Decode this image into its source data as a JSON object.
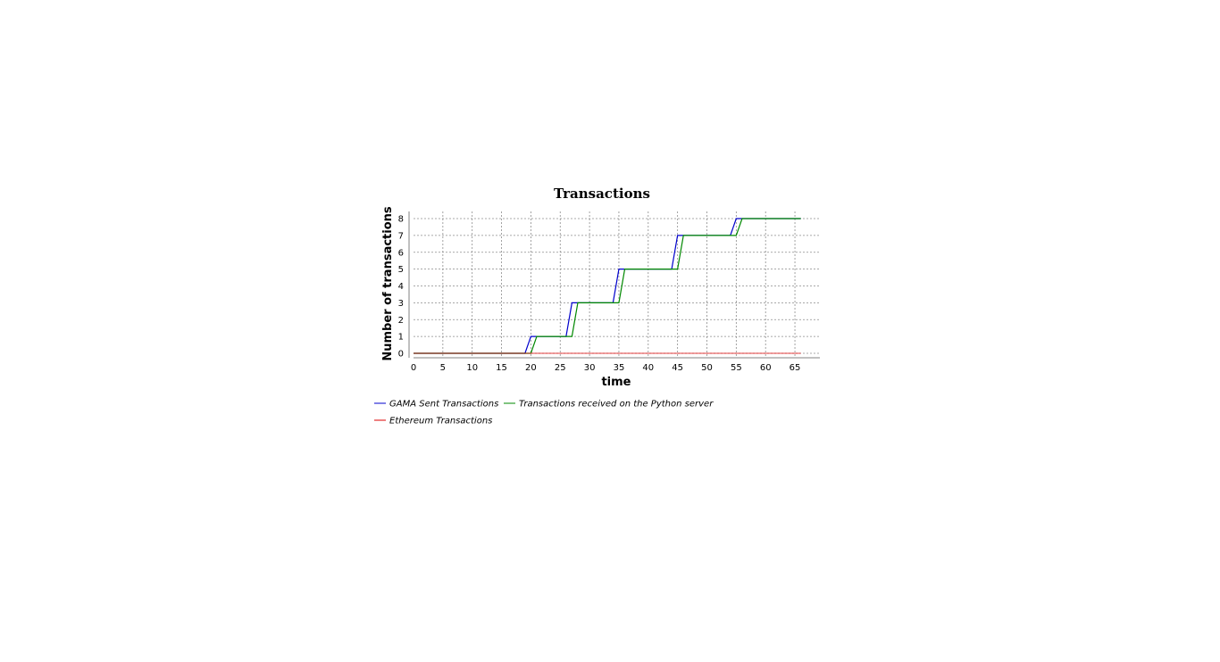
{
  "chart_data": {
    "type": "line",
    "title": "Transactions",
    "xlabel": "time",
    "ylabel": "Number of transactions",
    "xlim": [
      0,
      69
    ],
    "ylim": [
      -0.3,
      8.3
    ],
    "x_ticks": [
      0,
      5,
      10,
      15,
      20,
      25,
      30,
      35,
      40,
      45,
      50,
      55,
      60,
      65
    ],
    "y_ticks": [
      0,
      1,
      2,
      3,
      4,
      5,
      6,
      7,
      8
    ],
    "grid": true,
    "legend_position": "bottom-left",
    "series": [
      {
        "name": "GAMA Sent Transactions",
        "color": "#0000cc",
        "points": [
          [
            0,
            0
          ],
          [
            19,
            0
          ],
          [
            20,
            1
          ],
          [
            26,
            1
          ],
          [
            27,
            3
          ],
          [
            34,
            3
          ],
          [
            35,
            5
          ],
          [
            44,
            5
          ],
          [
            45,
            7
          ],
          [
            54,
            7
          ],
          [
            55,
            8
          ],
          [
            66,
            8
          ]
        ]
      },
      {
        "name": "Transactions received on the Python server",
        "color": "#008800",
        "points": [
          [
            0,
            0
          ],
          [
            20,
            0
          ],
          [
            21,
            1
          ],
          [
            27,
            1
          ],
          [
            28,
            3
          ],
          [
            35,
            3
          ],
          [
            36,
            5
          ],
          [
            45,
            5
          ],
          [
            46,
            7
          ],
          [
            55,
            7
          ],
          [
            56,
            8
          ],
          [
            66,
            8
          ]
        ]
      },
      {
        "name": "Ethereum Transactions",
        "color": "#dd0000",
        "points": [
          [
            0,
            0
          ],
          [
            66,
            0
          ]
        ]
      }
    ]
  }
}
